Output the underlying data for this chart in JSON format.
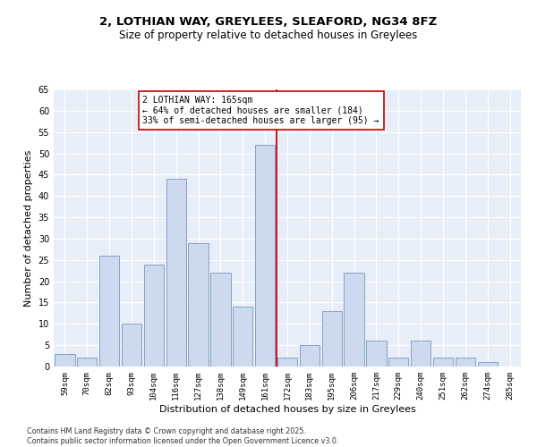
{
  "title": "2, LOTHIAN WAY, GREYLEES, SLEAFORD, NG34 8FZ",
  "subtitle": "Size of property relative to detached houses in Greylees",
  "xlabel": "Distribution of detached houses by size in Greylees",
  "ylabel": "Number of detached properties",
  "categories": [
    "59sqm",
    "70sqm",
    "82sqm",
    "93sqm",
    "104sqm",
    "116sqm",
    "127sqm",
    "138sqm",
    "149sqm",
    "161sqm",
    "172sqm",
    "183sqm",
    "195sqm",
    "206sqm",
    "217sqm",
    "229sqm",
    "240sqm",
    "251sqm",
    "262sqm",
    "274sqm",
    "285sqm"
  ],
  "values": [
    3,
    2,
    26,
    10,
    24,
    44,
    29,
    22,
    14,
    52,
    2,
    5,
    13,
    22,
    6,
    2,
    6,
    2,
    2,
    1,
    0
  ],
  "bar_color": "#ccd9ef",
  "bar_edge_color": "#7799bb",
  "vline_x": 9.5,
  "vline_color": "#cc0000",
  "annotation_text": "2 LOTHIAN WAY: 165sqm\n← 64% of detached houses are smaller (184)\n33% of semi-detached houses are larger (95) →",
  "annotation_box_color": "#ffffff",
  "annotation_box_edge_color": "#cc0000",
  "ylim": [
    0,
    65
  ],
  "yticks": [
    0,
    5,
    10,
    15,
    20,
    25,
    30,
    35,
    40,
    45,
    50,
    55,
    60,
    65
  ],
  "background_color": "#e8eef8",
  "footer_text": "Contains HM Land Registry data © Crown copyright and database right 2025.\nContains public sector information licensed under the Open Government Licence v3.0.",
  "title_fontsize": 9.5,
  "subtitle_fontsize": 8.5,
  "tick_fontsize": 6.5,
  "ylabel_fontsize": 8,
  "xlabel_fontsize": 8,
  "ann_fontsize": 7,
  "footer_fontsize": 5.8
}
